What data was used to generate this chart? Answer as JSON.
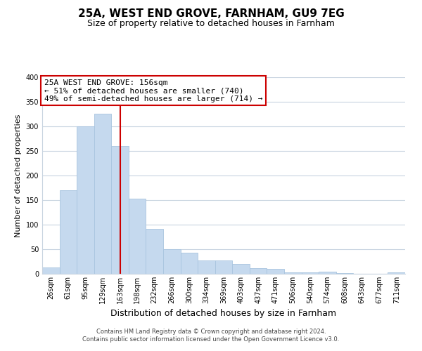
{
  "title": "25A, WEST END GROVE, FARNHAM, GU9 7EG",
  "subtitle": "Size of property relative to detached houses in Farnham",
  "xlabel": "Distribution of detached houses by size in Farnham",
  "ylabel": "Number of detached properties",
  "bar_labels": [
    "26sqm",
    "61sqm",
    "95sqm",
    "129sqm",
    "163sqm",
    "198sqm",
    "232sqm",
    "266sqm",
    "300sqm",
    "334sqm",
    "369sqm",
    "403sqm",
    "437sqm",
    "471sqm",
    "506sqm",
    "540sqm",
    "574sqm",
    "608sqm",
    "643sqm",
    "677sqm",
    "711sqm"
  ],
  "bar_heights": [
    13,
    170,
    300,
    326,
    260,
    153,
    92,
    50,
    43,
    27,
    27,
    20,
    11,
    10,
    3,
    3,
    4,
    1,
    0,
    0,
    3
  ],
  "bar_color": "#c5d9ee",
  "bar_edge_color": "#a8c4df",
  "vline_x_index": 4,
  "vline_color": "#cc0000",
  "annotation_title": "25A WEST END GROVE: 156sqm",
  "annotation_line1": "← 51% of detached houses are smaller (740)",
  "annotation_line2": "49% of semi-detached houses are larger (714) →",
  "annotation_box_color": "#ffffff",
  "annotation_box_edge": "#cc0000",
  "ylim": [
    0,
    400
  ],
  "yticks": [
    0,
    50,
    100,
    150,
    200,
    250,
    300,
    350,
    400
  ],
  "footer1": "Contains HM Land Registry data © Crown copyright and database right 2024.",
  "footer2": "Contains public sector information licensed under the Open Government Licence v3.0.",
  "background_color": "#ffffff",
  "grid_color": "#c8d4e0",
  "title_fontsize": 11,
  "subtitle_fontsize": 9,
  "ylabel_fontsize": 8,
  "xlabel_fontsize": 9,
  "tick_fontsize": 7,
  "footer_fontsize": 6,
  "annot_fontsize": 8
}
